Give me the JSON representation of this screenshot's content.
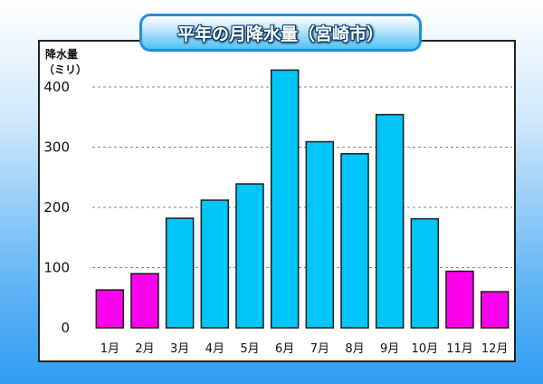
{
  "chart_data": {
    "type": "bar",
    "title": "平年の月降水量（宮崎市）",
    "ylabel_lines": [
      "降水量",
      "（ミリ）"
    ],
    "xlabel": "",
    "categories": [
      "1月",
      "2月",
      "3月",
      "4月",
      "5月",
      "6月",
      "7月",
      "8月",
      "9月",
      "10月",
      "11月",
      "12月"
    ],
    "values": [
      63,
      90,
      182,
      212,
      239,
      428,
      309,
      289,
      354,
      181,
      94,
      60
    ],
    "ylim": [
      0,
      440
    ],
    "yticks": [
      0,
      100,
      200,
      300,
      400
    ],
    "grid": true,
    "colors": {
      "winter": "#ff00ee",
      "other": "#00c6f8",
      "bar_edge": "#1a1a1a",
      "grid": "#8a8a8a"
    },
    "winter_months": [
      "1月",
      "2月",
      "11月",
      "12月"
    ]
  }
}
